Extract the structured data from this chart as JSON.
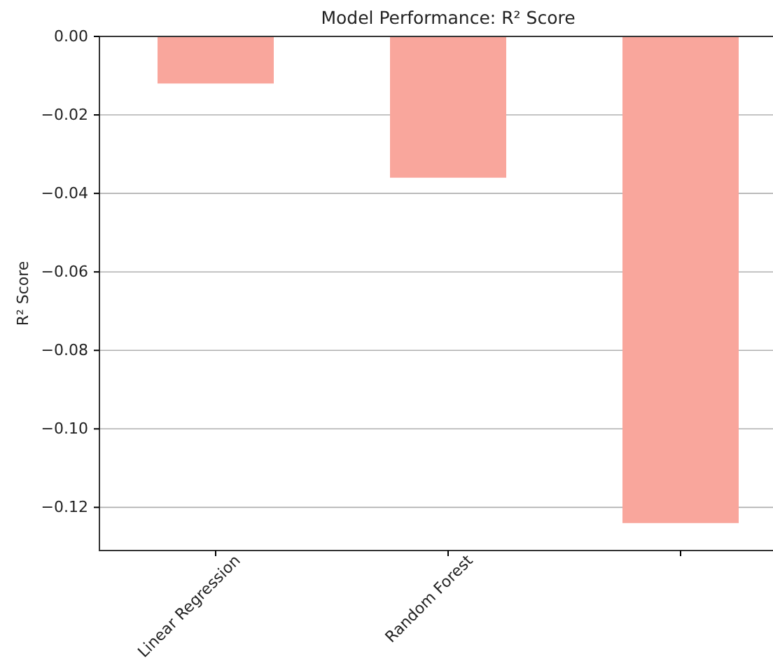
{
  "chart_data": {
    "type": "bar",
    "title": "Model Performance: R² Score",
    "ylabel": "R² Score",
    "categories": [
      "Linear Regression",
      "Random Forest",
      null
    ],
    "values": [
      -0.012,
      -0.036,
      -0.124
    ],
    "color": "#f9a69c",
    "ylim": [
      -0.131,
      0
    ],
    "yticks": [
      {
        "value": -0.12,
        "label": "−0.12"
      },
      {
        "value": -0.1,
        "label": "−0.10"
      },
      {
        "value": -0.08,
        "label": "−0.08"
      },
      {
        "value": -0.06,
        "label": "−0.06"
      },
      {
        "value": -0.04,
        "label": "−0.04"
      },
      {
        "value": -0.02,
        "label": "−0.02"
      },
      {
        "value": 0,
        "label": "0.00"
      }
    ],
    "grid": "y"
  }
}
